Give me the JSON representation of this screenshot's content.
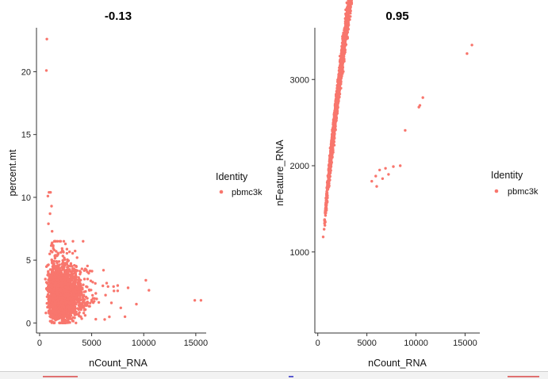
{
  "chart_data": [
    {
      "type": "scatter",
      "title": "-0.13",
      "xlabel": "nCount_RNA",
      "ylabel": "percent.mt",
      "xlim": [
        -300,
        16000
      ],
      "ylim": [
        -0.8,
        23.5
      ],
      "xticks": [
        0,
        5000,
        10000,
        15000
      ],
      "xtick_labels": [
        "0",
        "5000",
        "10000",
        "15000"
      ],
      "yticks": [
        0,
        5,
        10,
        15,
        20
      ],
      "ytick_labels": [
        "0",
        "5",
        "10",
        "15",
        "20"
      ],
      "legend": {
        "title": "Identity",
        "entries": [
          {
            "label": "pbmc3k",
            "color": "#F8766D"
          }
        ]
      },
      "point_color": "#F8766D",
      "distribution": {
        "type": "count_vs_percent_mt",
        "n": 2700,
        "seed": 11
      },
      "outliers": [
        [
          700,
          22.6
        ],
        [
          650,
          20.1
        ],
        [
          900,
          10.4
        ],
        [
          1050,
          10.4
        ],
        [
          800,
          10.1
        ],
        [
          1150,
          9.3
        ],
        [
          1000,
          8.7
        ],
        [
          850,
          7.9
        ],
        [
          1200,
          7.3
        ],
        [
          10200,
          3.4
        ],
        [
          10500,
          2.6
        ],
        [
          15500,
          1.8
        ],
        [
          14900,
          1.8
        ],
        [
          8500,
          2.8
        ],
        [
          9300,
          1.5
        ],
        [
          7800,
          1.2
        ],
        [
          6900,
          1.6
        ],
        [
          8200,
          0.5
        ],
        [
          5400,
          0.3
        ],
        [
          3600,
          5.2
        ],
        [
          7100,
          2.9
        ]
      ]
    },
    {
      "type": "scatter",
      "title": "0.95",
      "xlabel": "nCount_RNA",
      "ylabel": "nFeature_RNA",
      "xlim": [
        -300,
        16500
      ],
      "ylim": [
        60,
        3600
      ],
      "xticks": [
        0,
        5000,
        10000,
        15000
      ],
      "xtick_labels": [
        "0",
        "5000",
        "10000",
        "15000"
      ],
      "yticks": [
        1000,
        2000,
        3000
      ],
      "ytick_labels": [
        "1000",
        "2000",
        "3000"
      ],
      "legend": {
        "title": "Identity",
        "entries": [
          {
            "label": "pbmc3k",
            "color": "#F8766D"
          }
        ]
      },
      "point_color": "#F8766D",
      "distribution": {
        "type": "count_vs_features",
        "n": 2700,
        "seed": 23
      },
      "outliers": [
        [
          15700,
          3400
        ],
        [
          15200,
          3300
        ],
        [
          10700,
          2790
        ],
        [
          10400,
          2700
        ],
        [
          10300,
          2680
        ],
        [
          8900,
          2410
        ],
        [
          8400,
          2000
        ],
        [
          7700,
          1990
        ],
        [
          6900,
          1970
        ],
        [
          6300,
          1950
        ],
        [
          7200,
          1900
        ],
        [
          5900,
          1880
        ],
        [
          6600,
          1850
        ],
        [
          5500,
          1820
        ],
        [
          6000,
          1760
        ]
      ]
    }
  ]
}
